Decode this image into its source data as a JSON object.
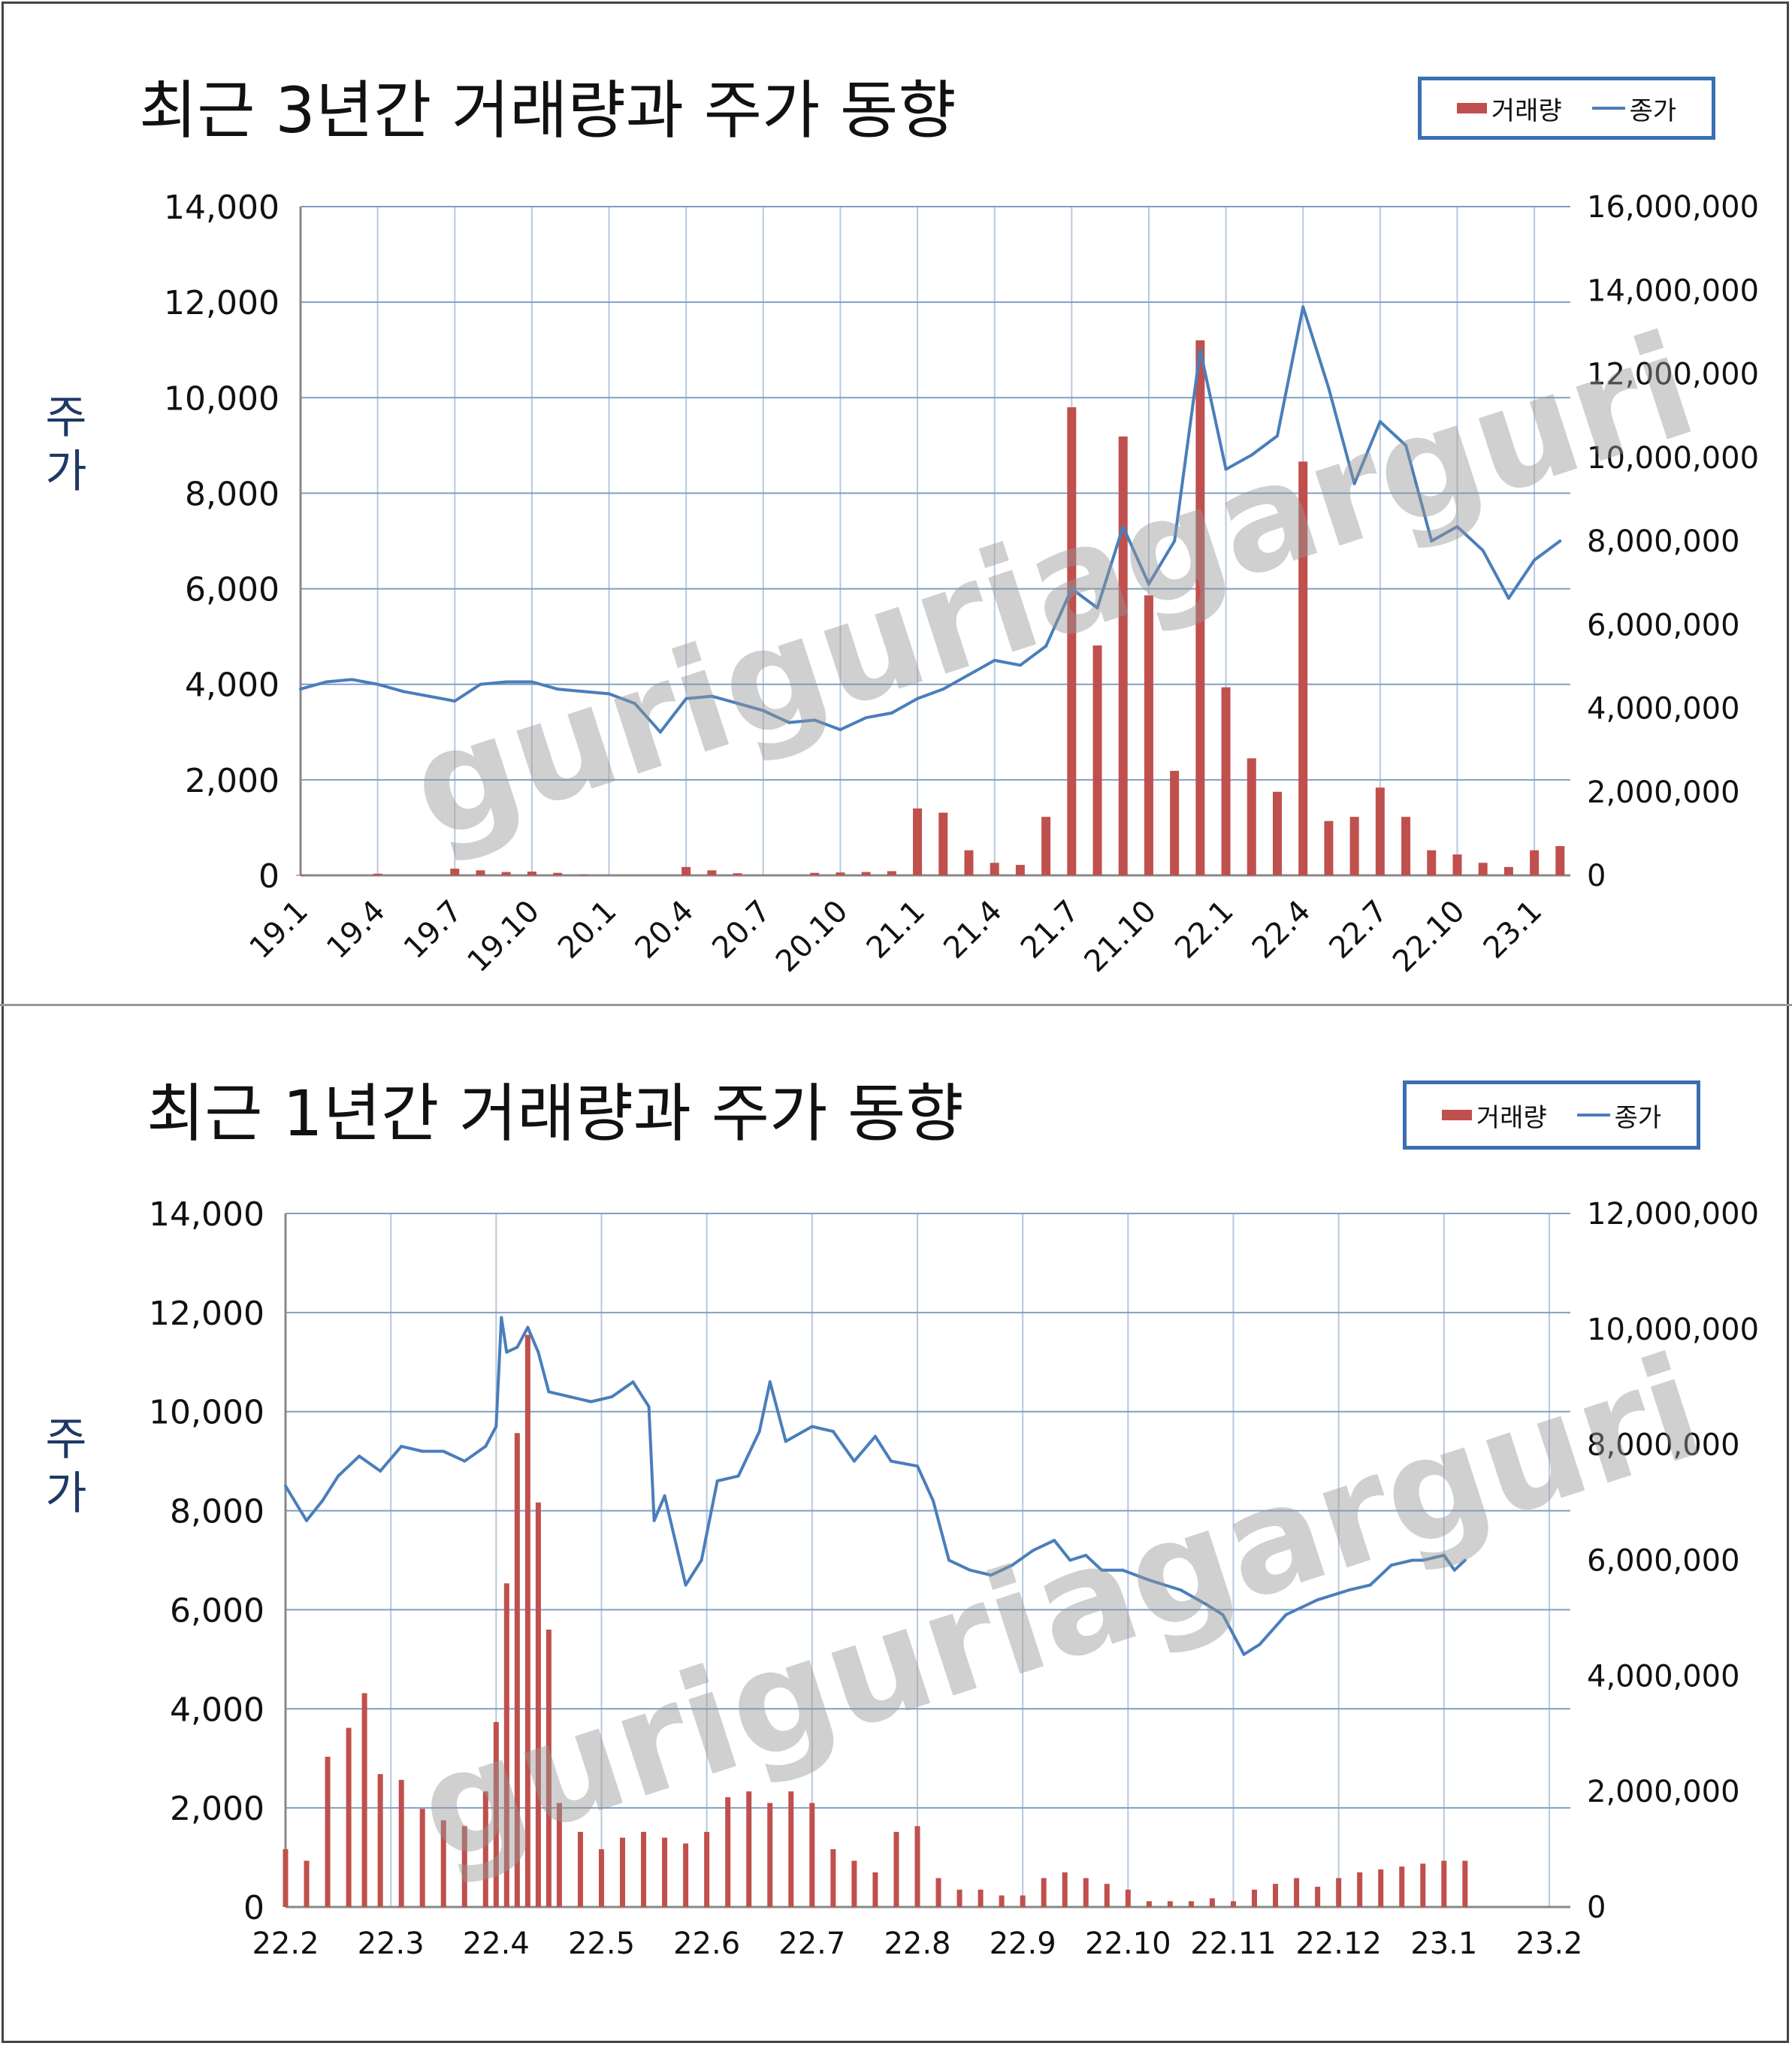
{
  "watermark": "guriguriagarguri",
  "legend": {
    "bar_label": "거래량",
    "line_label": "종가"
  },
  "y_axis_title": [
    "주",
    "가"
  ],
  "chart_data": [
    {
      "type": "bar+line",
      "title": "최근 3년간 거래량과 주가 동향",
      "x_tick_labels": [
        "19.1",
        "19.4",
        "19.7",
        "19.10",
        "20.1",
        "20.4",
        "20.7",
        "20.10",
        "21.1",
        "21.4",
        "21.7",
        "21.10",
        "22.1",
        "22.4",
        "22.7",
        "22.10",
        "23.1"
      ],
      "x_start_month": "2019-01",
      "x_end_month": "2023-02",
      "y_left": {
        "min": 0,
        "max": 14000,
        "ticks": [
          "0",
          "2,000",
          "4,000",
          "6,000",
          "8,000",
          "10,000",
          "12,000",
          "14,000"
        ]
      },
      "y_right": {
        "min": 0,
        "max": 16000000,
        "ticks": [
          "0",
          "2,000,000",
          "4,000,000",
          "6,000,000",
          "8,000,000",
          "10,000,000",
          "12,000,000",
          "14,000,000",
          "16,000,000"
        ]
      },
      "grid": true,
      "legend_position": "top-right",
      "series": [
        {
          "name": "종가",
          "kind": "line",
          "axis": "left",
          "color": "#4a7ebb",
          "points": [
            [
              "2019-01",
              3900
            ],
            [
              "2019-02",
              4050
            ],
            [
              "2019-03",
              4100
            ],
            [
              "2019-04",
              4000
            ],
            [
              "2019-05",
              3850
            ],
            [
              "2019-06",
              3750
            ],
            [
              "2019-07",
              3650
            ],
            [
              "2019-08",
              4000
            ],
            [
              "2019-09",
              4050
            ],
            [
              "2019-10",
              4050
            ],
            [
              "2019-11",
              3900
            ],
            [
              "2019-12",
              3850
            ],
            [
              "2020-01",
              3800
            ],
            [
              "2020-02",
              3600
            ],
            [
              "2020-03",
              3000
            ],
            [
              "2020-04",
              3700
            ],
            [
              "2020-05",
              3750
            ],
            [
              "2020-06",
              3600
            ],
            [
              "2020-07",
              3450
            ],
            [
              "2020-08",
              3200
            ],
            [
              "2020-09",
              3250
            ],
            [
              "2020-10",
              3050
            ],
            [
              "2020-11",
              3300
            ],
            [
              "2020-12",
              3400
            ],
            [
              "2021-01",
              3700
            ],
            [
              "2021-02",
              3900
            ],
            [
              "2021-03",
              4200
            ],
            [
              "2021-04",
              4500
            ],
            [
              "2021-05",
              4400
            ],
            [
              "2021-06",
              4800
            ],
            [
              "2021-07",
              6000
            ],
            [
              "2021-08",
              5600
            ],
            [
              "2021-09",
              7300
            ],
            [
              "2021-10",
              6100
            ],
            [
              "2021-11",
              7000
            ],
            [
              "2021-12",
              11000
            ],
            [
              "2022-01",
              8500
            ],
            [
              "2022-02",
              8800
            ],
            [
              "2022-03",
              9200
            ],
            [
              "2022-04",
              11900
            ],
            [
              "2022-05",
              10200
            ],
            [
              "2022-06",
              8200
            ],
            [
              "2022-07",
              9500
            ],
            [
              "2022-08",
              9000
            ],
            [
              "2022-09",
              7000
            ],
            [
              "2022-10",
              7300
            ],
            [
              "2022-11",
              6800
            ],
            [
              "2022-12",
              5800
            ],
            [
              "2023-01",
              6600
            ],
            [
              "2023-02",
              7000
            ]
          ]
        },
        {
          "name": "거래량",
          "kind": "bar",
          "axis": "right",
          "color": "#c0504d",
          "points": [
            [
              "2019-01",
              10000
            ],
            [
              "2019-04",
              40000
            ],
            [
              "2019-07",
              160000
            ],
            [
              "2019-08",
              120000
            ],
            [
              "2019-09",
              80000
            ],
            [
              "2019-10",
              90000
            ],
            [
              "2019-11",
              60000
            ],
            [
              "2019-12",
              20000
            ],
            [
              "2020-04",
              200000
            ],
            [
              "2020-05",
              120000
            ],
            [
              "2020-06",
              50000
            ],
            [
              "2020-09",
              60000
            ],
            [
              "2020-10",
              70000
            ],
            [
              "2020-11",
              80000
            ],
            [
              "2020-12",
              100000
            ],
            [
              "2021-01",
              1600000
            ],
            [
              "2021-02",
              1500000
            ],
            [
              "2021-03",
              600000
            ],
            [
              "2021-04",
              300000
            ],
            [
              "2021-05",
              250000
            ],
            [
              "2021-06",
              1400000
            ],
            [
              "2021-07",
              11200000
            ],
            [
              "2021-08",
              5500000
            ],
            [
              "2021-09",
              10500000
            ],
            [
              "2021-10",
              6700000
            ],
            [
              "2021-11",
              2500000
            ],
            [
              "2021-12",
              12800000
            ],
            [
              "2022-01",
              4500000
            ],
            [
              "2022-02",
              2800000
            ],
            [
              "2022-03",
              2000000
            ],
            [
              "2022-04",
              9900000
            ],
            [
              "2022-05",
              1300000
            ],
            [
              "2022-06",
              1400000
            ],
            [
              "2022-07",
              2100000
            ],
            [
              "2022-08",
              1400000
            ],
            [
              "2022-09",
              600000
            ],
            [
              "2022-10",
              500000
            ],
            [
              "2022-11",
              300000
            ],
            [
              "2022-12",
              200000
            ],
            [
              "2023-01",
              600000
            ],
            [
              "2023-02",
              700000
            ]
          ]
        }
      ]
    },
    {
      "type": "bar+line",
      "title": "최근 1년간 거래량과 주가 동향",
      "x_tick_labels": [
        "22.2",
        "22.3",
        "22.4",
        "22.5",
        "22.6",
        "22.7",
        "22.8",
        "22.9",
        "22.10",
        "22.11",
        "22.12",
        "23.1",
        "23.2"
      ],
      "y_left": {
        "min": 0,
        "max": 14000,
        "ticks": [
          "0",
          "2,000",
          "4,000",
          "6,000",
          "8,000",
          "10,000",
          "12,000",
          "14,000"
        ]
      },
      "y_right": {
        "min": 0,
        "max": 12000000,
        "ticks": [
          "0",
          "2,000,000",
          "4,000,000",
          "6,000,000",
          "8,000,000",
          "10,000,000",
          "12,000,000"
        ]
      },
      "grid": true,
      "legend_position": "top-right",
      "series": [
        {
          "name": "종가",
          "kind": "line",
          "axis": "left",
          "color": "#4a7ebb",
          "points": [
            [
              0.0,
              8500
            ],
            [
              0.2,
              7800
            ],
            [
              0.35,
              8200
            ],
            [
              0.5,
              8700
            ],
            [
              0.7,
              9100
            ],
            [
              0.9,
              8800
            ],
            [
              1.1,
              9300
            ],
            [
              1.3,
              9200
            ],
            [
              1.5,
              9200
            ],
            [
              1.7,
              9000
            ],
            [
              1.9,
              9300
            ],
            [
              2.0,
              9700
            ],
            [
              2.05,
              11900
            ],
            [
              2.1,
              11200
            ],
            [
              2.2,
              11300
            ],
            [
              2.3,
              11700
            ],
            [
              2.4,
              11200
            ],
            [
              2.5,
              10400
            ],
            [
              2.7,
              10300
            ],
            [
              2.9,
              10200
            ],
            [
              3.1,
              10300
            ],
            [
              3.3,
              10600
            ],
            [
              3.45,
              10100
            ],
            [
              3.5,
              7800
            ],
            [
              3.6,
              8300
            ],
            [
              3.8,
              6500
            ],
            [
              3.95,
              7000
            ],
            [
              4.1,
              8600
            ],
            [
              4.3,
              8700
            ],
            [
              4.5,
              9600
            ],
            [
              4.6,
              10600
            ],
            [
              4.75,
              9400
            ],
            [
              5.0,
              9700
            ],
            [
              5.2,
              9600
            ],
            [
              5.4,
              9000
            ],
            [
              5.6,
              9500
            ],
            [
              5.75,
              9000
            ],
            [
              6.0,
              8900
            ],
            [
              6.15,
              8200
            ],
            [
              6.3,
              7000
            ],
            [
              6.5,
              6800
            ],
            [
              6.7,
              6700
            ],
            [
              6.9,
              6900
            ],
            [
              7.1,
              7200
            ],
            [
              7.3,
              7400
            ],
            [
              7.45,
              7000
            ],
            [
              7.6,
              7100
            ],
            [
              7.75,
              6800
            ],
            [
              7.95,
              6800
            ],
            [
              8.2,
              6600
            ],
            [
              8.5,
              6400
            ],
            [
              8.75,
              6100
            ],
            [
              8.9,
              5900
            ],
            [
              9.1,
              5100
            ],
            [
              9.25,
              5300
            ],
            [
              9.5,
              5900
            ],
            [
              9.8,
              6200
            ],
            [
              10.1,
              6400
            ],
            [
              10.3,
              6500
            ],
            [
              10.5,
              6900
            ],
            [
              10.7,
              7000
            ],
            [
              10.8,
              7000
            ],
            [
              11.0,
              7100
            ],
            [
              11.1,
              6800
            ],
            [
              11.2,
              7000
            ]
          ]
        },
        {
          "name": "거래량",
          "kind": "bar",
          "axis": "right",
          "color": "#c0504d",
          "points": [
            [
              0.0,
              1000000
            ],
            [
              0.2,
              800000
            ],
            [
              0.4,
              2600000
            ],
            [
              0.6,
              3100000
            ],
            [
              0.75,
              3700000
            ],
            [
              0.9,
              2300000
            ],
            [
              1.1,
              2200000
            ],
            [
              1.3,
              1700000
            ],
            [
              1.5,
              1500000
            ],
            [
              1.7,
              1400000
            ],
            [
              1.9,
              2000000
            ],
            [
              2.0,
              3200000
            ],
            [
              2.1,
              5600000
            ],
            [
              2.2,
              8200000
            ],
            [
              2.3,
              9900000
            ],
            [
              2.4,
              7000000
            ],
            [
              2.5,
              4800000
            ],
            [
              2.6,
              1800000
            ],
            [
              2.8,
              1300000
            ],
            [
              3.0,
              1000000
            ],
            [
              3.2,
              1200000
            ],
            [
              3.4,
              1300000
            ],
            [
              3.6,
              1200000
            ],
            [
              3.8,
              1100000
            ],
            [
              4.0,
              1300000
            ],
            [
              4.2,
              1900000
            ],
            [
              4.4,
              2000000
            ],
            [
              4.6,
              1800000
            ],
            [
              4.8,
              2000000
            ],
            [
              5.0,
              1800000
            ],
            [
              5.2,
              1000000
            ],
            [
              5.4,
              800000
            ],
            [
              5.6,
              600000
            ],
            [
              5.8,
              1300000
            ],
            [
              6.0,
              1400000
            ],
            [
              6.2,
              500000
            ],
            [
              6.4,
              300000
            ],
            [
              6.6,
              300000
            ],
            [
              6.8,
              200000
            ],
            [
              7.0,
              200000
            ],
            [
              7.2,
              500000
            ],
            [
              7.4,
              600000
            ],
            [
              7.6,
              500000
            ],
            [
              7.8,
              400000
            ],
            [
              8.0,
              300000
            ],
            [
              8.2,
              100000
            ],
            [
              8.4,
              100000
            ],
            [
              8.6,
              100000
            ],
            [
              8.8,
              150000
            ],
            [
              9.0,
              100000
            ],
            [
              9.2,
              300000
            ],
            [
              9.4,
              400000
            ],
            [
              9.6,
              500000
            ],
            [
              9.8,
              350000
            ],
            [
              10.0,
              500000
            ],
            [
              10.2,
              600000
            ],
            [
              10.4,
              650000
            ],
            [
              10.6,
              700000
            ],
            [
              10.8,
              750000
            ],
            [
              11.0,
              800000
            ],
            [
              11.2,
              800000
            ]
          ]
        }
      ]
    }
  ]
}
